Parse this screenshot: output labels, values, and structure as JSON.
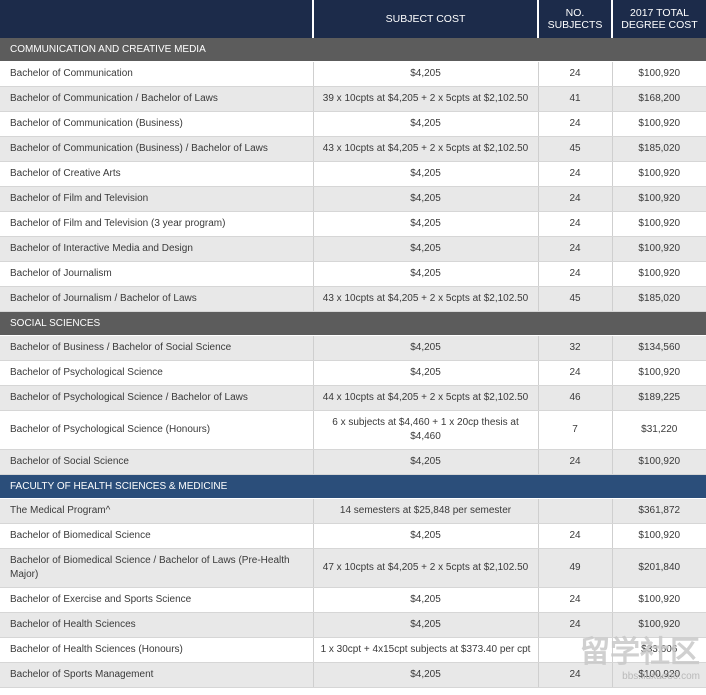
{
  "header": {
    "col1": "",
    "col2": "SUBJECT COST",
    "col3_line1": "NO.",
    "col3_line2": "SUBJECTS",
    "col4_line1": "2017 TOTAL",
    "col4_line2": "DEGREE COST"
  },
  "sections": [
    {
      "title": "COMMUNICATION AND CREATIVE MEDIA",
      "color": "#5c5c5c",
      "rows": [
        {
          "name": "Bachelor of Communication",
          "cost": "$4,205",
          "subjects": "24",
          "total": "$100,920"
        },
        {
          "name": "Bachelor of Communication / Bachelor of Laws",
          "cost": "39 x 10cpts at $4,205 + 2 x 5cpts at $2,102.50",
          "subjects": "41",
          "total": "$168,200"
        },
        {
          "name": "Bachelor of Communication (Business)",
          "cost": "$4,205",
          "subjects": "24",
          "total": "$100,920"
        },
        {
          "name": "Bachelor of Communication (Business) / Bachelor of Laws",
          "cost": "43 x 10cpts at $4,205 + 2 x 5cpts at $2,102.50",
          "subjects": "45",
          "total": "$185,020"
        },
        {
          "name": "Bachelor of Creative Arts",
          "cost": "$4,205",
          "subjects": "24",
          "total": "$100,920"
        },
        {
          "name": "Bachelor of Film and Television",
          "cost": "$4,205",
          "subjects": "24",
          "total": "$100,920"
        },
        {
          "name": "Bachelor of Film and Television (3 year program)",
          "cost": "$4,205",
          "subjects": "24",
          "total": "$100,920"
        },
        {
          "name": "Bachelor of Interactive Media and Design",
          "cost": "$4,205",
          "subjects": "24",
          "total": "$100,920"
        },
        {
          "name": "Bachelor of Journalism",
          "cost": "$4,205",
          "subjects": "24",
          "total": "$100,920"
        },
        {
          "name": "Bachelor of Journalism / Bachelor of Laws",
          "cost": "43 x 10cpts at $4,205 + 2 x 5cpts at $2,102.50",
          "subjects": "45",
          "total": "$185,020"
        }
      ]
    },
    {
      "title": "SOCIAL SCIENCES",
      "color": "#5c5c5c",
      "rows": [
        {
          "name": "Bachelor of Business / Bachelor of Social Science",
          "cost": "$4,205",
          "subjects": "32",
          "total": "$134,560"
        },
        {
          "name": "Bachelor of Psychological Science",
          "cost": "$4,205",
          "subjects": "24",
          "total": "$100,920"
        },
        {
          "name": "Bachelor of Psychological Science / Bachelor of Laws",
          "cost": "44 x 10cpts at $4,205 + 2 x 5cpts at $2,102.50",
          "subjects": "46",
          "total": "$189,225"
        },
        {
          "name": "Bachelor of Psychological Science (Honours)",
          "cost": "6 x subjects at $4,460 + 1 x 20cp thesis at $4,460",
          "subjects": "7",
          "total": "$31,220",
          "tall": true
        },
        {
          "name": "Bachelor of Social Science",
          "cost": "$4,205",
          "subjects": "24",
          "total": "$100,920"
        }
      ]
    },
    {
      "title": "FACULTY OF HEALTH SCIENCES & MEDICINE",
      "color": "#2b4e7a",
      "rows": [
        {
          "name": "The Medical Program^",
          "cost": "14 semesters at $25,848 per semester",
          "subjects": "",
          "total": "$361,872"
        },
        {
          "name": "Bachelor of Biomedical Science",
          "cost": "$4,205",
          "subjects": "24",
          "total": "$100,920"
        },
        {
          "name": "Bachelor of Biomedical Science / Bachelor of Laws (Pre-Health Major)",
          "cost": "47 x 10cpts at $4,205 + 2 x 5cpts at $2,102.50",
          "subjects": "49",
          "total": "$201,840",
          "tall": true
        },
        {
          "name": "Bachelor of Exercise and Sports Science",
          "cost": "$4,205",
          "subjects": "24",
          "total": "$100,920"
        },
        {
          "name": "Bachelor of Health Sciences",
          "cost": "$4,205",
          "subjects": "24",
          "total": "$100,920"
        },
        {
          "name": "Bachelor of Health Sciences (Honours)",
          "cost": "1 x 30cpt + 4x15cpt subjects at $373.40 per cpt",
          "subjects": "",
          "total": "$33,606"
        },
        {
          "name": "Bachelor of Sports Management",
          "cost": "$4,205",
          "subjects": "24",
          "total": "$100,920"
        }
      ]
    }
  ],
  "watermark": {
    "big": "留学社区",
    "small": "bbs.liuxue86.com"
  }
}
